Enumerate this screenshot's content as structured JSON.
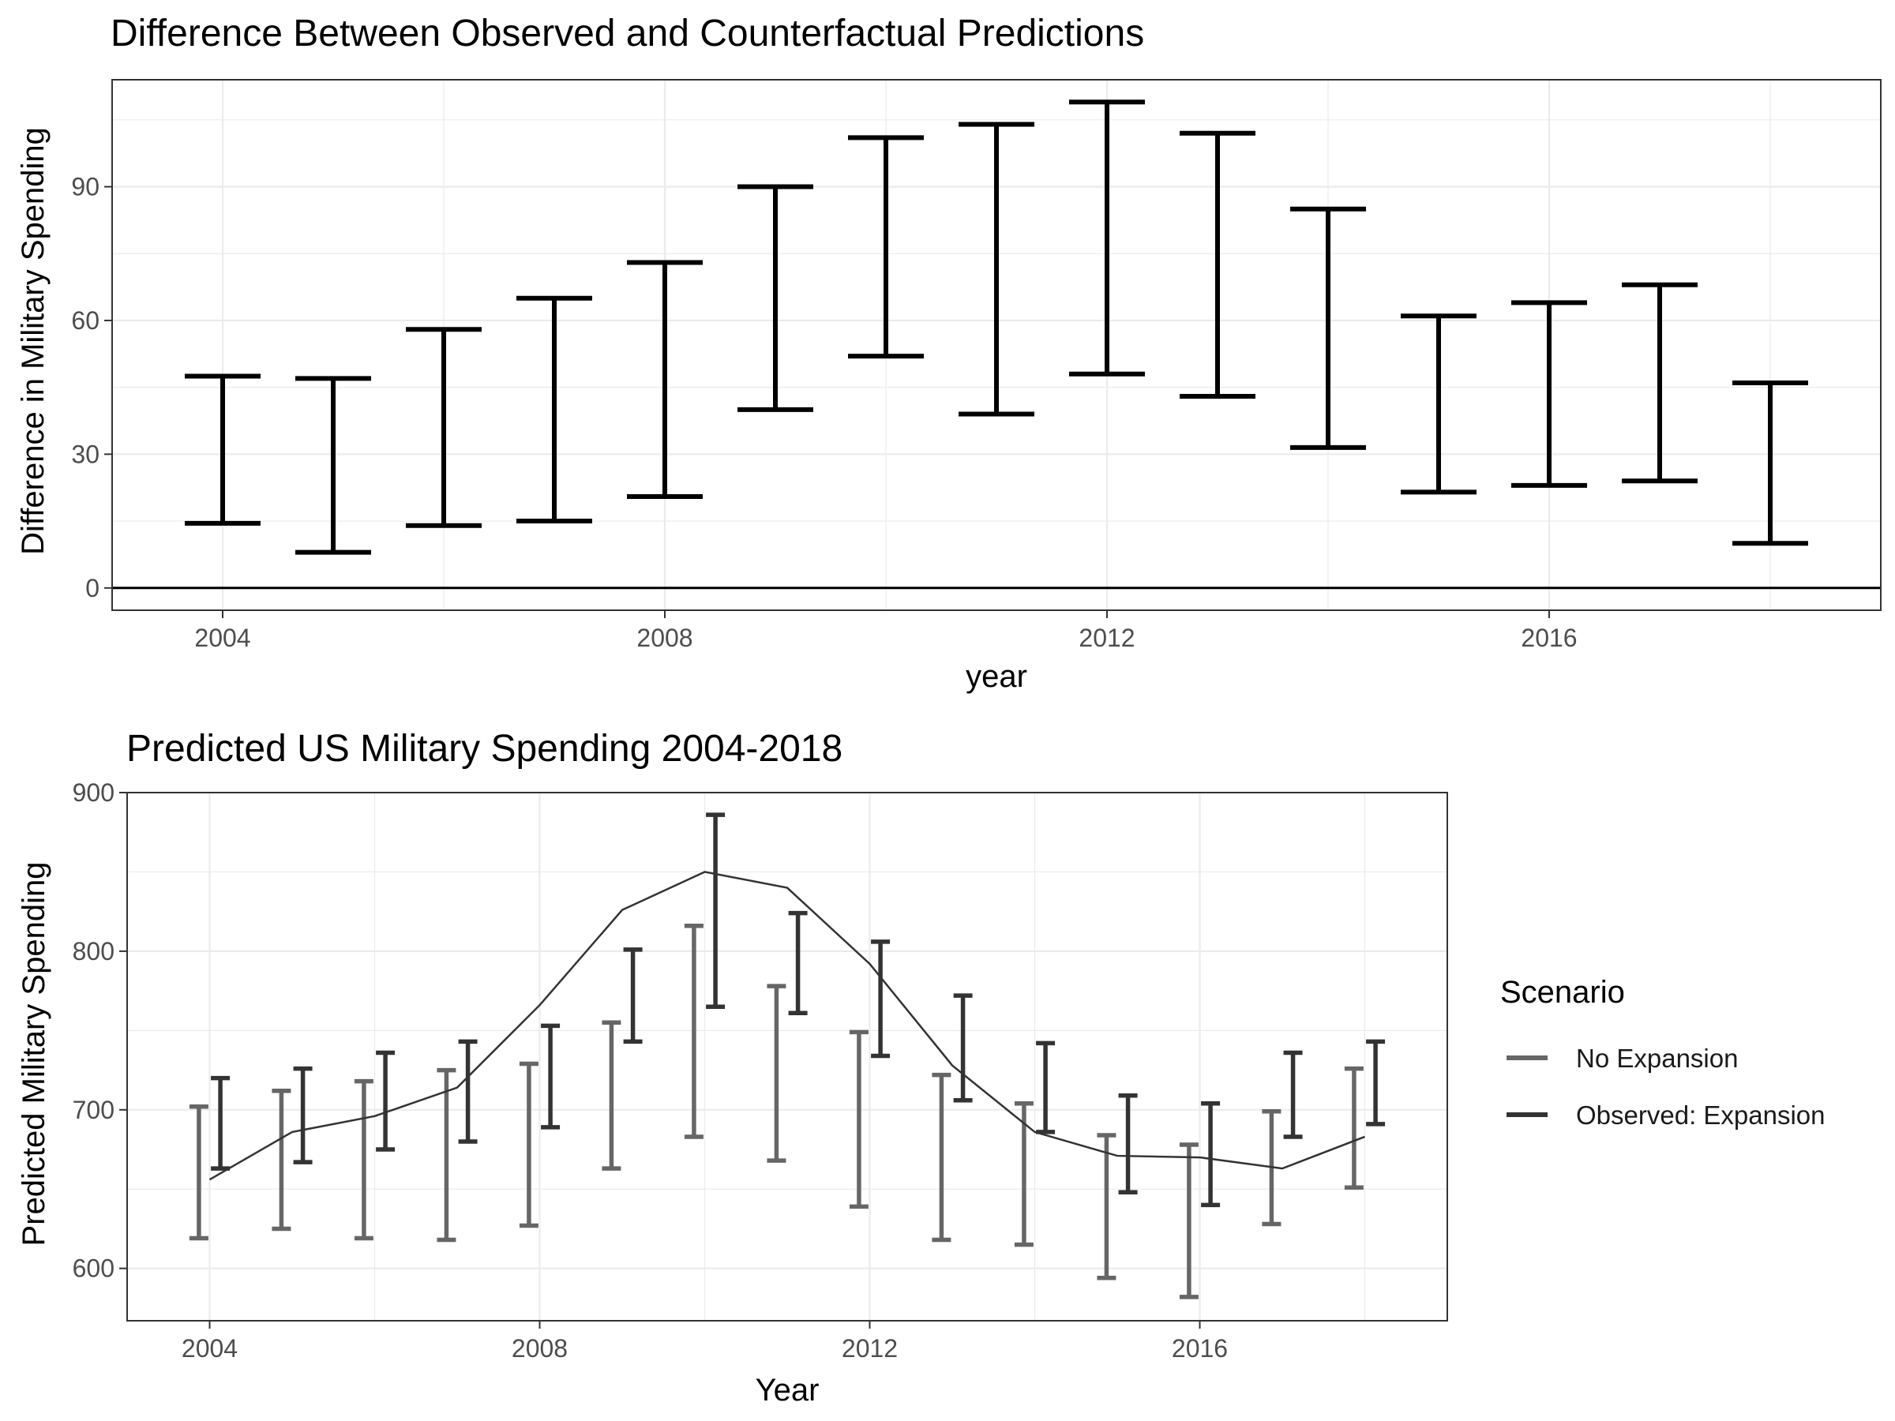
{
  "chart_data": [
    {
      "type": "errorbar",
      "title": "Difference Between Observed and Counterfactual Predictions",
      "xlabel": "year",
      "ylabel": "Difference in Military Spending",
      "xlim": [
        2003.0,
        2019.0
      ],
      "ylim": [
        -5,
        114
      ],
      "x_ticks": [
        2004,
        2008,
        2012,
        2016
      ],
      "y_ticks": [
        0,
        30,
        60,
        90
      ],
      "grid": true,
      "reference_line": 0,
      "series": [
        {
          "color": "#000000",
          "points": [
            {
              "x": 2004,
              "lower": 14.5,
              "upper": 47.5
            },
            {
              "x": 2005,
              "lower": 8.0,
              "upper": 47.0
            },
            {
              "x": 2006,
              "lower": 14.0,
              "upper": 58.0
            },
            {
              "x": 2007,
              "lower": 15.0,
              "upper": 65.0
            },
            {
              "x": 2008,
              "lower": 20.5,
              "upper": 73.0
            },
            {
              "x": 2009,
              "lower": 40.0,
              "upper": 90.0
            },
            {
              "x": 2010,
              "lower": 52.0,
              "upper": 101.0
            },
            {
              "x": 2011,
              "lower": 39.0,
              "upper": 104.0
            },
            {
              "x": 2012,
              "lower": 48.0,
              "upper": 109.0
            },
            {
              "x": 2013,
              "lower": 43.0,
              "upper": 102.0
            },
            {
              "x": 2014,
              "lower": 31.5,
              "upper": 85.0
            },
            {
              "x": 2015,
              "lower": 21.5,
              "upper": 61.0
            },
            {
              "x": 2016,
              "lower": 23.0,
              "upper": 64.0
            },
            {
              "x": 2017,
              "lower": 24.0,
              "upper": 68.0
            },
            {
              "x": 2018,
              "lower": 10.0,
              "upper": 46.0
            }
          ]
        }
      ]
    },
    {
      "type": "errorbar",
      "title": "Predicted US Military Spending 2004-2018",
      "xlabel": "Year",
      "ylabel": "Predicted Military Spending",
      "xlim": [
        2003.0,
        2019.0
      ],
      "ylim": [
        567,
        900
      ],
      "x_ticks": [
        2004,
        2008,
        2012,
        2016
      ],
      "y_ticks": [
        600,
        700,
        800,
        900
      ],
      "grid": true,
      "legend": {
        "title": "Scenario",
        "placement": "right"
      },
      "series": [
        {
          "name": "No Expansion",
          "color": "#666666",
          "points": [
            {
              "x": 2004,
              "lower": 619,
              "upper": 702
            },
            {
              "x": 2005,
              "lower": 625,
              "upper": 712
            },
            {
              "x": 2006,
              "lower": 619,
              "upper": 718
            },
            {
              "x": 2007,
              "lower": 618,
              "upper": 725
            },
            {
              "x": 2008,
              "lower": 627,
              "upper": 729
            },
            {
              "x": 2009,
              "lower": 663,
              "upper": 755
            },
            {
              "x": 2010,
              "lower": 683,
              "upper": 816
            },
            {
              "x": 2011,
              "lower": 668,
              "upper": 778
            },
            {
              "x": 2012,
              "lower": 639,
              "upper": 749
            },
            {
              "x": 2013,
              "lower": 618,
              "upper": 722
            },
            {
              "x": 2014,
              "lower": 615,
              "upper": 704
            },
            {
              "x": 2015,
              "lower": 594,
              "upper": 684
            },
            {
              "x": 2016,
              "lower": 582,
              "upper": 678
            },
            {
              "x": 2017,
              "lower": 628,
              "upper": 699
            },
            {
              "x": 2018,
              "lower": 651,
              "upper": 726
            }
          ]
        },
        {
          "name": "Observed: Expansion",
          "color": "#333333",
          "points": [
            {
              "x": 2004,
              "lower": 663,
              "upper": 720
            },
            {
              "x": 2005,
              "lower": 667,
              "upper": 726
            },
            {
              "x": 2006,
              "lower": 675,
              "upper": 736
            },
            {
              "x": 2007,
              "lower": 680,
              "upper": 743
            },
            {
              "x": 2008,
              "lower": 689,
              "upper": 753
            },
            {
              "x": 2009,
              "lower": 743,
              "upper": 801
            },
            {
              "x": 2010,
              "lower": 765,
              "upper": 886
            },
            {
              "x": 2011,
              "lower": 761,
              "upper": 824
            },
            {
              "x": 2012,
              "lower": 734,
              "upper": 806
            },
            {
              "x": 2013,
              "lower": 706,
              "upper": 772
            },
            {
              "x": 2014,
              "lower": 686,
              "upper": 742
            },
            {
              "x": 2015,
              "lower": 648,
              "upper": 709
            },
            {
              "x": 2016,
              "lower": 640,
              "upper": 704
            },
            {
              "x": 2017,
              "lower": 683,
              "upper": 736
            },
            {
              "x": 2018,
              "lower": 691,
              "upper": 743
            }
          ]
        }
      ],
      "line": {
        "color": "#333333",
        "x": [
          2004,
          2005,
          2006,
          2007,
          2008,
          2009,
          2010,
          2011,
          2012,
          2013,
          2014,
          2015,
          2016,
          2017,
          2018
        ],
        "y": [
          656,
          686,
          696,
          714,
          766,
          826,
          850,
          840,
          792,
          728,
          686,
          671,
          670,
          663,
          683
        ]
      }
    }
  ]
}
